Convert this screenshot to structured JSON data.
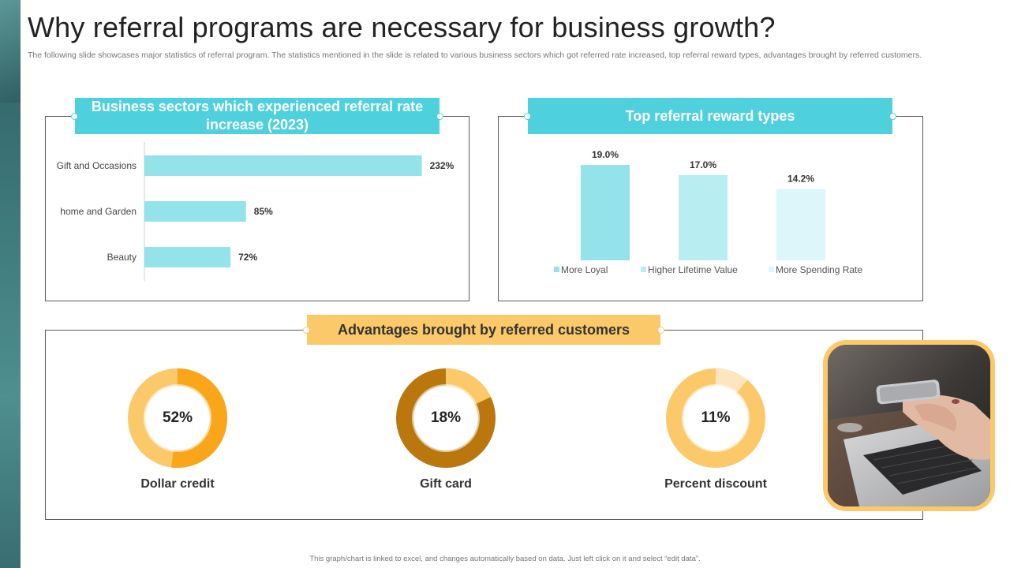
{
  "page": {
    "title": "Why referral programs are necessary for business growth?",
    "subtitle": "The following slide showcases major statistics of referral program. The statistics mentioned in the slide is related to various business sectors which got referred rate increased, top referral reward types, advantages brought by referred customers.",
    "footer": "This graph/chart is linked to excel, and changes automatically based on data. Just left click on it and select “edit data”."
  },
  "colors": {
    "teal": "#4fd1dd",
    "bar_light": "#94e2ea",
    "gold": "#fbc96a",
    "orange": "#f9a61a",
    "brown": "#b9770e"
  },
  "panels": {
    "sectors": {
      "title": "Business sectors which experienced referral rate increase (2023)"
    },
    "rewards": {
      "title": "Top referral reward types"
    },
    "advantages": {
      "title": "Advantages brought by referred customers"
    }
  },
  "chart_data": [
    {
      "type": "bar",
      "orientation": "horizontal",
      "title": "Business sectors which experienced referral rate increase (2023)",
      "categories": [
        "Gift and Occasions",
        "home and Garden",
        "Beauty"
      ],
      "values": [
        232,
        85,
        72
      ],
      "labels": [
        "232%",
        "85%",
        "72%"
      ],
      "unit": "%",
      "xlim": [
        0,
        260
      ],
      "grid": false
    },
    {
      "type": "bar",
      "title": "Top referral reward types",
      "categories": [
        "More Loyal",
        "Higher Lifetime Value",
        "More Spending Rate"
      ],
      "values": [
        19.0,
        17.0,
        14.2
      ],
      "labels": [
        "19.0%",
        "17.0%",
        "14.2%"
      ],
      "colors": [
        "#94e2ea",
        "#b8edf2",
        "#dcf6f9"
      ],
      "unit": "%",
      "ylim": [
        0,
        22
      ],
      "legend": "bottom",
      "grid": false
    },
    {
      "type": "pie",
      "style": "donut",
      "title": "Advantages brought by referred customers",
      "items": [
        {
          "name": "Dollar credit",
          "value": 52,
          "label": "52%",
          "color": "#f9a61a",
          "rest_color": "#fbc96a"
        },
        {
          "name": "Gift card",
          "value": 18,
          "label": "18%",
          "color": "#fbc96a",
          "rest_color": "#b9770e"
        },
        {
          "name": "Percent discount",
          "value": 11,
          "label": "11%",
          "color": "#fde6bf",
          "rest_color": "#fbc96a"
        }
      ]
    }
  ]
}
